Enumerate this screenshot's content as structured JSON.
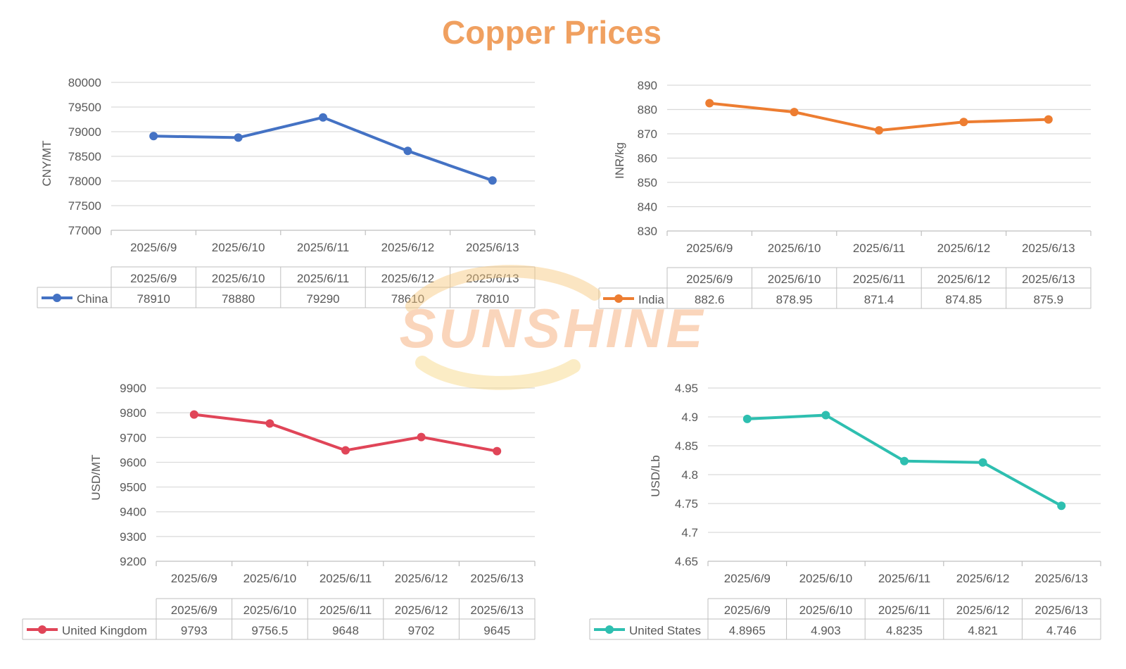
{
  "page": {
    "title": "Copper Prices",
    "title_color": "#F0A060",
    "watermark": "SUNSHINE",
    "watermark_color": "#F6A46A"
  },
  "chart_data": [
    {
      "type": "line",
      "name": "china",
      "categories": [
        "2025/6/9",
        "2025/6/10",
        "2025/6/11",
        "2025/6/12",
        "2025/6/13"
      ],
      "series": [
        {
          "name": "China",
          "values": [
            78910,
            78880,
            79290,
            78610,
            78010
          ]
        }
      ],
      "table_values": [
        "78910",
        "78880",
        "79290",
        "78610",
        "78010"
      ],
      "ylabel": "CNY/MT",
      "ylim": [
        77000,
        80000
      ],
      "yticks": [
        80000,
        79500,
        79000,
        78500,
        78000,
        77500,
        77000
      ],
      "ytick_labels": [
        "80000",
        "79500",
        "79000",
        "78500",
        "78000",
        "77500",
        "77000"
      ],
      "color": "#4472C4",
      "grid": true,
      "legend": "data-table"
    },
    {
      "type": "line",
      "name": "india",
      "categories": [
        "2025/6/9",
        "2025/6/10",
        "2025/6/11",
        "2025/6/12",
        "2025/6/13"
      ],
      "series": [
        {
          "name": "India",
          "values": [
            882.6,
            878.95,
            871.4,
            874.85,
            875.9
          ]
        }
      ],
      "table_values": [
        "882.6",
        "878.95",
        "871.4",
        "874.85",
        "875.9"
      ],
      "ylabel": "INR/kg",
      "ylim": [
        830,
        890
      ],
      "yticks": [
        890,
        880,
        870,
        860,
        850,
        840,
        830
      ],
      "ytick_labels": [
        "890",
        "880",
        "870",
        "860",
        "850",
        "840",
        "830"
      ],
      "color": "#ED7D31",
      "grid": true,
      "legend": "data-table"
    },
    {
      "type": "line",
      "name": "uk",
      "categories": [
        "2025/6/9",
        "2025/6/10",
        "2025/6/11",
        "2025/6/12",
        "2025/6/13"
      ],
      "series": [
        {
          "name": "United Kingdom",
          "values": [
            9793,
            9756.5,
            9648,
            9702,
            9645
          ]
        }
      ],
      "table_values": [
        "9793",
        "9756.5",
        "9648",
        "9702",
        "9645"
      ],
      "ylabel": "USD/MT",
      "ylim": [
        9200,
        9900
      ],
      "yticks": [
        9900,
        9800,
        9700,
        9600,
        9500,
        9400,
        9300,
        9200
      ],
      "ytick_labels": [
        "9900",
        "9800",
        "9700",
        "9600",
        "9500",
        "9400",
        "9300",
        "9200"
      ],
      "color": "#E04558",
      "grid": true,
      "legend": "data-table"
    },
    {
      "type": "line",
      "name": "us",
      "categories": [
        "2025/6/9",
        "2025/6/10",
        "2025/6/11",
        "2025/6/12",
        "2025/6/13"
      ],
      "series": [
        {
          "name": "United States",
          "values": [
            4.8965,
            4.903,
            4.8235,
            4.821,
            4.746
          ]
        }
      ],
      "table_values": [
        "4.8965",
        "4.903",
        "4.8235",
        "4.821",
        "4.746"
      ],
      "ylabel": "USD/Lb",
      "ylim": [
        4.65,
        4.95
      ],
      "yticks": [
        4.95,
        4.9,
        4.85,
        4.8,
        4.75,
        4.7,
        4.65
      ],
      "ytick_labels": [
        "4.95",
        "4.9",
        "4.85",
        "4.8",
        "4.75",
        "4.7",
        "4.65"
      ],
      "color": "#2EBFB0",
      "grid": true,
      "legend": "data-table"
    }
  ]
}
